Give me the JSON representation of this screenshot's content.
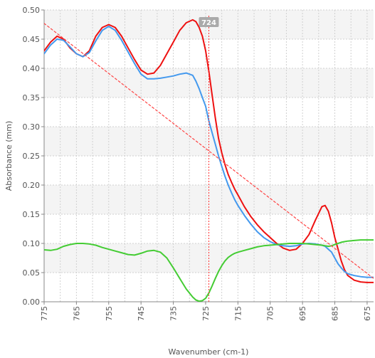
{
  "chart_data": {
    "type": "line",
    "title": "",
    "xlabel": "Wavenumber (cm-1)",
    "ylabel": "Absorbance (mm)",
    "xlim": [
      775,
      673
    ],
    "ylim": [
      0,
      0.5
    ],
    "x_ticks": [
      775,
      765,
      755,
      745,
      735,
      725,
      715,
      705,
      695,
      685,
      675
    ],
    "x_tick_labels": [
      "775",
      "765",
      "755",
      "745",
      "735",
      "725",
      "715",
      "705",
      "695",
      "685",
      "675"
    ],
    "y_ticks": [
      0,
      0.05,
      0.1,
      0.15,
      0.2,
      0.25,
      0.3,
      0.35,
      0.4,
      0.45,
      0.5
    ],
    "y_tick_labels": [
      "0.00",
      "0.05",
      "0.10",
      "0.15",
      "0.20",
      "0.25",
      "0.30",
      "0.35",
      "0.40",
      "0.45",
      "0.50"
    ],
    "grid": true,
    "legend": "none",
    "cursor": {
      "x": 724,
      "label": "724",
      "color": "#ff3333"
    },
    "series": [
      {
        "color": "#ee1111",
        "x": [
          775,
          773,
          771,
          769,
          767,
          765,
          763,
          761,
          759,
          757,
          755,
          753,
          751,
          749,
          747,
          745,
          743,
          741,
          739,
          737,
          735,
          733,
          731,
          729,
          728,
          727,
          726,
          725,
          724,
          723,
          722,
          721,
          720,
          719,
          718,
          717,
          716,
          715,
          713,
          711,
          709,
          707,
          705,
          703,
          701,
          699,
          697,
          695,
          693,
          691,
          689,
          688,
          687,
          686,
          685,
          684,
          683,
          682,
          681,
          679,
          677,
          675,
          673
        ],
        "y": [
          0.43,
          0.445,
          0.455,
          0.45,
          0.435,
          0.425,
          0.42,
          0.43,
          0.455,
          0.47,
          0.475,
          0.47,
          0.455,
          0.435,
          0.415,
          0.397,
          0.39,
          0.392,
          0.405,
          0.425,
          0.445,
          0.465,
          0.478,
          0.483,
          0.48,
          0.47,
          0.455,
          0.43,
          0.395,
          0.355,
          0.315,
          0.28,
          0.255,
          0.235,
          0.218,
          0.205,
          0.193,
          0.183,
          0.163,
          0.146,
          0.132,
          0.12,
          0.11,
          0.1,
          0.092,
          0.088,
          0.09,
          0.1,
          0.115,
          0.14,
          0.163,
          0.165,
          0.155,
          0.135,
          0.11,
          0.09,
          0.07,
          0.055,
          0.045,
          0.037,
          0.034,
          0.033,
          0.033
        ]
      },
      {
        "color": "#4499ee",
        "x": [
          775,
          773,
          771,
          769,
          767,
          765,
          763,
          761,
          759,
          757,
          755,
          753,
          751,
          749,
          747,
          745,
          743,
          741,
          739,
          737,
          735,
          733,
          731,
          729,
          728,
          727,
          726,
          725,
          724,
          723,
          722,
          721,
          720,
          719,
          718,
          717,
          716,
          715,
          713,
          711,
          709,
          707,
          705,
          703,
          701,
          699,
          697,
          695,
          693,
          691,
          689,
          688,
          687,
          686,
          685,
          684,
          683,
          682,
          681,
          679,
          677,
          675,
          673
        ],
        "y": [
          0.425,
          0.44,
          0.45,
          0.448,
          0.437,
          0.425,
          0.42,
          0.427,
          0.447,
          0.465,
          0.472,
          0.465,
          0.448,
          0.428,
          0.408,
          0.39,
          0.382,
          0.382,
          0.383,
          0.385,
          0.387,
          0.39,
          0.392,
          0.388,
          0.378,
          0.365,
          0.35,
          0.335,
          0.31,
          0.29,
          0.27,
          0.25,
          0.232,
          0.215,
          0.2,
          0.187,
          0.175,
          0.165,
          0.148,
          0.133,
          0.12,
          0.11,
          0.103,
          0.098,
          0.096,
          0.095,
          0.096,
          0.099,
          0.1,
          0.099,
          0.097,
          0.095,
          0.09,
          0.085,
          0.075,
          0.065,
          0.058,
          0.052,
          0.048,
          0.045,
          0.043,
          0.042,
          0.042
        ]
      },
      {
        "color": "#44cc33",
        "x": [
          775,
          773,
          771,
          769,
          767,
          765,
          763,
          761,
          759,
          757,
          755,
          753,
          751,
          749,
          747,
          745,
          743,
          741,
          739,
          737,
          735,
          733,
          731,
          729,
          728,
          727,
          726,
          725,
          724,
          723,
          722,
          721,
          720,
          719,
          718,
          717,
          716,
          715,
          713,
          711,
          709,
          707,
          705,
          703,
          701,
          699,
          697,
          695,
          693,
          691,
          689,
          688,
          687,
          686,
          685,
          684,
          683,
          682,
          681,
          679,
          677,
          675,
          673
        ],
        "y": [
          0.089,
          0.088,
          0.09,
          0.095,
          0.098,
          0.1,
          0.1,
          0.099,
          0.097,
          0.093,
          0.09,
          0.087,
          0.084,
          0.081,
          0.08,
          0.083,
          0.087,
          0.088,
          0.085,
          0.075,
          0.058,
          0.04,
          0.022,
          0.008,
          0.003,
          0.001,
          0.002,
          0.006,
          0.015,
          0.027,
          0.04,
          0.052,
          0.062,
          0.07,
          0.076,
          0.08,
          0.083,
          0.085,
          0.088,
          0.091,
          0.094,
          0.096,
          0.097,
          0.098,
          0.099,
          0.1,
          0.1,
          0.1,
          0.099,
          0.098,
          0.097,
          0.096,
          0.095,
          0.096,
          0.098,
          0.1,
          0.102,
          0.103,
          0.104,
          0.105,
          0.106,
          0.106,
          0.106
        ]
      },
      {
        "color": "#ff4444",
        "dashed": true,
        "x": [
          775,
          673
        ],
        "y": [
          0.477,
          0.04
        ]
      }
    ]
  }
}
